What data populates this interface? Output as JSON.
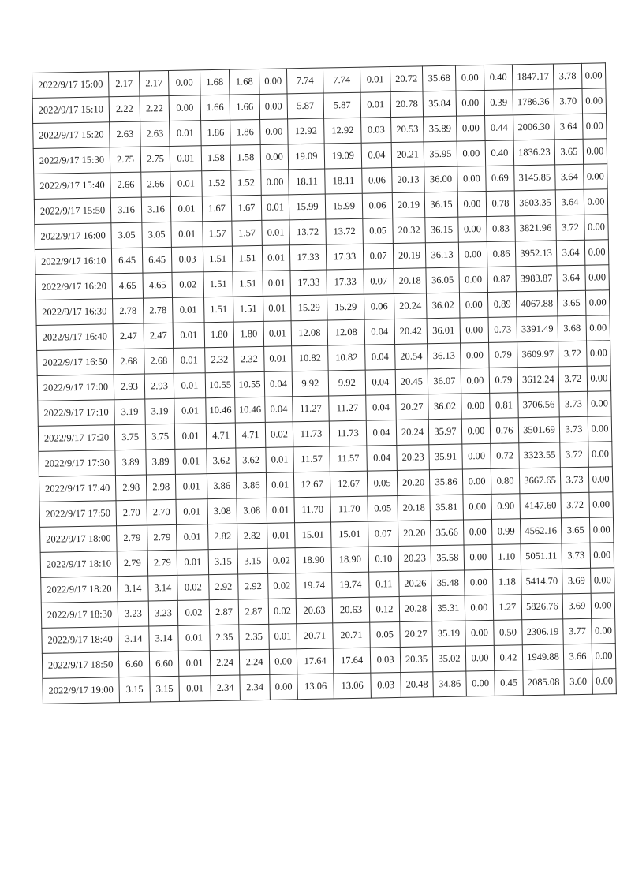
{
  "table": {
    "rows": [
      [
        "2022/9/17 15:00",
        "2.17",
        "2.17",
        "0.00",
        "1.68",
        "1.68",
        "0.00",
        "7.74",
        "7.74",
        "0.01",
        "20.72",
        "35.68",
        "0.00",
        "0.40",
        "1847.17",
        "3.78",
        "0.00"
      ],
      [
        "2022/9/17 15:10",
        "2.22",
        "2.22",
        "0.00",
        "1.66",
        "1.66",
        "0.00",
        "5.87",
        "5.87",
        "0.01",
        "20.78",
        "35.84",
        "0.00",
        "0.39",
        "1786.36",
        "3.70",
        "0.00"
      ],
      [
        "2022/9/17 15:20",
        "2.63",
        "2.63",
        "0.01",
        "1.86",
        "1.86",
        "0.00",
        "12.92",
        "12.92",
        "0.03",
        "20.53",
        "35.89",
        "0.00",
        "0.44",
        "2006.30",
        "3.64",
        "0.00"
      ],
      [
        "2022/9/17 15:30",
        "2.75",
        "2.75",
        "0.01",
        "1.58",
        "1.58",
        "0.00",
        "19.09",
        "19.09",
        "0.04",
        "20.21",
        "35.95",
        "0.00",
        "0.40",
        "1836.23",
        "3.65",
        "0.00"
      ],
      [
        "2022/9/17 15:40",
        "2.66",
        "2.66",
        "0.01",
        "1.52",
        "1.52",
        "0.00",
        "18.11",
        "18.11",
        "0.06",
        "20.13",
        "36.00",
        "0.00",
        "0.69",
        "3145.85",
        "3.64",
        "0.00"
      ],
      [
        "2022/9/17 15:50",
        "3.16",
        "3.16",
        "0.01",
        "1.67",
        "1.67",
        "0.01",
        "15.99",
        "15.99",
        "0.06",
        "20.19",
        "36.15",
        "0.00",
        "0.78",
        "3603.35",
        "3.64",
        "0.00"
      ],
      [
        "2022/9/17 16:00",
        "3.05",
        "3.05",
        "0.01",
        "1.57",
        "1.57",
        "0.01",
        "13.72",
        "13.72",
        "0.05",
        "20.32",
        "36.15",
        "0.00",
        "0.83",
        "3821.96",
        "3.72",
        "0.00"
      ],
      [
        "2022/9/17 16:10",
        "6.45",
        "6.45",
        "0.03",
        "1.51",
        "1.51",
        "0.01",
        "17.33",
        "17.33",
        "0.07",
        "20.19",
        "36.13",
        "0.00",
        "0.86",
        "3952.13",
        "3.64",
        "0.00"
      ],
      [
        "2022/9/17 16:20",
        "4.65",
        "4.65",
        "0.02",
        "1.51",
        "1.51",
        "0.01",
        "17.33",
        "17.33",
        "0.07",
        "20.18",
        "36.05",
        "0.00",
        "0.87",
        "3983.87",
        "3.64",
        "0.00"
      ],
      [
        "2022/9/17 16:30",
        "2.78",
        "2.78",
        "0.01",
        "1.51",
        "1.51",
        "0.01",
        "15.29",
        "15.29",
        "0.06",
        "20.24",
        "36.02",
        "0.00",
        "0.89",
        "4067.88",
        "3.65",
        "0.00"
      ],
      [
        "2022/9/17 16:40",
        "2.47",
        "2.47",
        "0.01",
        "1.80",
        "1.80",
        "0.01",
        "12.08",
        "12.08",
        "0.04",
        "20.42",
        "36.01",
        "0.00",
        "0.73",
        "3391.49",
        "3.68",
        "0.00"
      ],
      [
        "2022/9/17 16:50",
        "2.68",
        "2.68",
        "0.01",
        "2.32",
        "2.32",
        "0.01",
        "10.82",
        "10.82",
        "0.04",
        "20.54",
        "36.13",
        "0.00",
        "0.79",
        "3609.97",
        "3.72",
        "0.00"
      ],
      [
        "2022/9/17 17:00",
        "2.93",
        "2.93",
        "0.01",
        "10.55",
        "10.55",
        "0.04",
        "9.92",
        "9.92",
        "0.04",
        "20.45",
        "36.07",
        "0.00",
        "0.79",
        "3612.24",
        "3.72",
        "0.00"
      ],
      [
        "2022/9/17 17:10",
        "3.19",
        "3.19",
        "0.01",
        "10.46",
        "10.46",
        "0.04",
        "11.27",
        "11.27",
        "0.04",
        "20.27",
        "36.02",
        "0.00",
        "0.81",
        "3706.56",
        "3.73",
        "0.00"
      ],
      [
        "2022/9/17 17:20",
        "3.75",
        "3.75",
        "0.01",
        "4.71",
        "4.71",
        "0.02",
        "11.73",
        "11.73",
        "0.04",
        "20.24",
        "35.97",
        "0.00",
        "0.76",
        "3501.69",
        "3.73",
        "0.00"
      ],
      [
        "2022/9/17 17:30",
        "3.89",
        "3.89",
        "0.01",
        "3.62",
        "3.62",
        "0.01",
        "11.57",
        "11.57",
        "0.04",
        "20.23",
        "35.91",
        "0.00",
        "0.72",
        "3323.55",
        "3.72",
        "0.00"
      ],
      [
        "2022/9/17 17:40",
        "2.98",
        "2.98",
        "0.01",
        "3.86",
        "3.86",
        "0.01",
        "12.67",
        "12.67",
        "0.05",
        "20.20",
        "35.86",
        "0.00",
        "0.80",
        "3667.65",
        "3.73",
        "0.00"
      ],
      [
        "2022/9/17 17:50",
        "2.70",
        "2.70",
        "0.01",
        "3.08",
        "3.08",
        "0.01",
        "11.70",
        "11.70",
        "0.05",
        "20.18",
        "35.81",
        "0.00",
        "0.90",
        "4147.60",
        "3.72",
        "0.00"
      ],
      [
        "2022/9/17 18:00",
        "2.79",
        "2.79",
        "0.01",
        "2.82",
        "2.82",
        "0.01",
        "15.01",
        "15.01",
        "0.07",
        "20.20",
        "35.66",
        "0.00",
        "0.99",
        "4562.16",
        "3.65",
        "0.00"
      ],
      [
        "2022/9/17 18:10",
        "2.79",
        "2.79",
        "0.01",
        "3.15",
        "3.15",
        "0.02",
        "18.90",
        "18.90",
        "0.10",
        "20.23",
        "35.58",
        "0.00",
        "1.10",
        "5051.11",
        "3.73",
        "0.00"
      ],
      [
        "2022/9/17 18:20",
        "3.14",
        "3.14",
        "0.02",
        "2.92",
        "2.92",
        "0.02",
        "19.74",
        "19.74",
        "0.11",
        "20.26",
        "35.48",
        "0.00",
        "1.18",
        "5414.70",
        "3.69",
        "0.00"
      ],
      [
        "2022/9/17 18:30",
        "3.23",
        "3.23",
        "0.02",
        "2.87",
        "2.87",
        "0.02",
        "20.63",
        "20.63",
        "0.12",
        "20.28",
        "35.31",
        "0.00",
        "1.27",
        "5826.76",
        "3.69",
        "0.00"
      ],
      [
        "2022/9/17 18:40",
        "3.14",
        "3.14",
        "0.01",
        "2.35",
        "2.35",
        "0.01",
        "20.71",
        "20.71",
        "0.05",
        "20.27",
        "35.19",
        "0.00",
        "0.50",
        "2306.19",
        "3.77",
        "0.00"
      ],
      [
        "2022/9/17 18:50",
        "6.60",
        "6.60",
        "0.01",
        "2.24",
        "2.24",
        "0.00",
        "17.64",
        "17.64",
        "0.03",
        "20.35",
        "35.02",
        "0.00",
        "0.42",
        "1949.88",
        "3.66",
        "0.00"
      ],
      [
        "2022/9/17 19:00",
        "3.15",
        "3.15",
        "0.01",
        "2.34",
        "2.34",
        "0.00",
        "13.06",
        "13.06",
        "0.03",
        "20.48",
        "34.86",
        "0.00",
        "0.45",
        "2085.08",
        "3.60",
        "0.00"
      ]
    ]
  }
}
